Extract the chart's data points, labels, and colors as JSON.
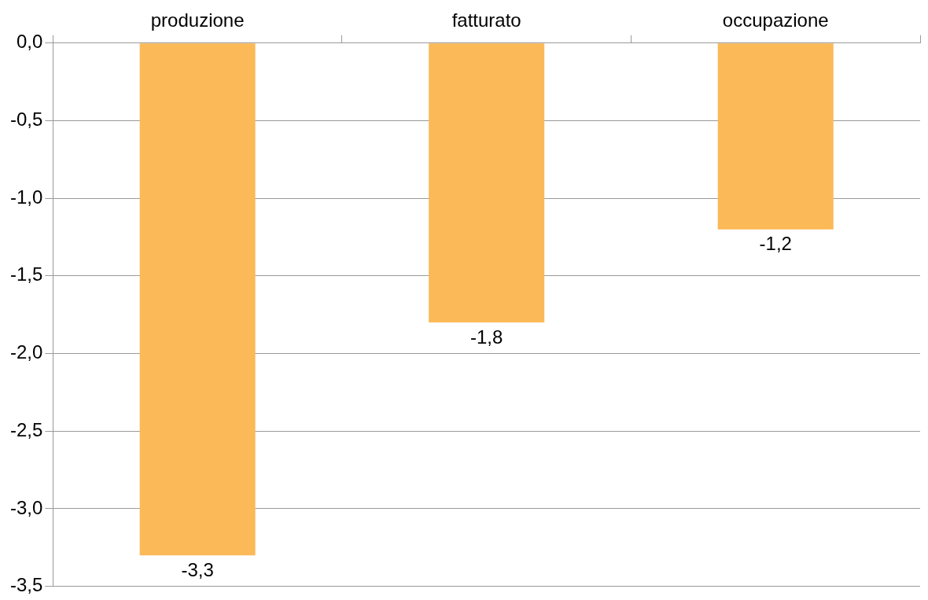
{
  "chart_data": {
    "type": "bar",
    "categories": [
      "produzione",
      "fatturato",
      "occupazione"
    ],
    "values": [
      -3.3,
      -1.8,
      -1.2
    ],
    "color": "#fbb957",
    "ylim": [
      -3.5,
      0
    ],
    "yticks": [
      {
        "value": 0,
        "label": "0,0"
      },
      {
        "value": -0.5,
        "label": "-0,5"
      },
      {
        "value": -1,
        "label": "-1,0"
      },
      {
        "value": -1.5,
        "label": "-1,5"
      },
      {
        "value": -2,
        "label": "-2,0"
      },
      {
        "value": -2.5,
        "label": "-2,5"
      },
      {
        "value": -3,
        "label": "-3,0"
      },
      {
        "value": -3.5,
        "label": "-3,5"
      }
    ],
    "grid": "y",
    "data_labels": true,
    "value_labels": [
      "-3,3",
      "-1,8",
      "-1,2"
    ]
  }
}
